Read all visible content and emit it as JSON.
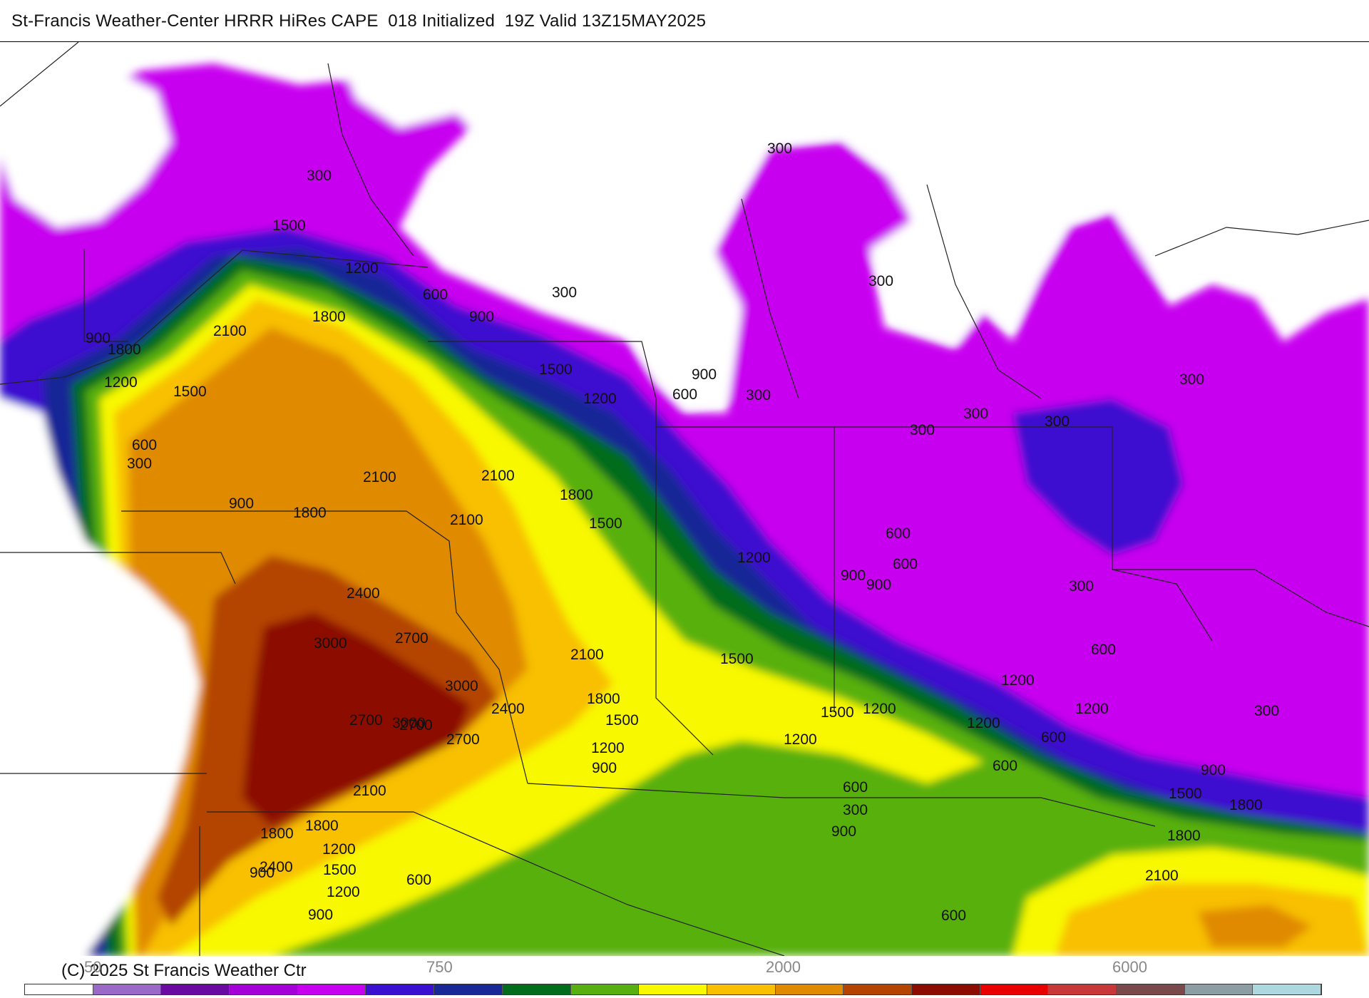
{
  "title": "St-Francis Weather-Center HRRR HiRes CAPE  018 Initialized  19Z Valid 13Z15MAY2025",
  "copyright": "(C) 2025 St Francis Weather Ctr",
  "colors": {
    "c0": "#ffffff",
    "c1": "#9b6ac8",
    "c2": "#6a0aa0",
    "c3": "#a500d8",
    "c4": "#c800f0",
    "c5": "#3c10d0",
    "c6": "#182896",
    "c7": "#006c1c",
    "c8": "#58b010",
    "c9": "#f8f800",
    "c10": "#f8c000",
    "c11": "#e08a00",
    "c12": "#b44400",
    "c13": "#8c0c00",
    "c14": "#e80000",
    "c15": "#c83838",
    "c16": "#7a4a4a",
    "c17": "#8c9ea4",
    "c18": "#aed8e0"
  },
  "colorbar": [
    "#ffffff",
    "#9b6ac8",
    "#6a0aa0",
    "#a500d8",
    "#c800f0",
    "#3c10d0",
    "#182896",
    "#006c1c",
    "#58b010",
    "#f8f800",
    "#f8c000",
    "#e08a00",
    "#b44400",
    "#8c0c00",
    "#e80000",
    "#c83838",
    "#7a4a4a",
    "#8c9ea4",
    "#aed8e0"
  ],
  "colorbar_ticks": [
    "50",
    "750",
    "2000",
    "6000"
  ],
  "contour_labels": [
    "300",
    "1500",
    "1200",
    "600",
    "300",
    "900",
    "2100",
    "1800",
    "900",
    "1800",
    "1200",
    "1500",
    "600",
    "300",
    "900",
    "1800",
    "2100",
    "2100",
    "1500",
    "1200",
    "900",
    "600",
    "300",
    "300",
    "300",
    "300",
    "300",
    "1800",
    "1500",
    "2100",
    "2400",
    "3000",
    "2700",
    "2700",
    "3000",
    "2400",
    "2700",
    "3000",
    "2700",
    "2100",
    "1800",
    "1500",
    "1200",
    "2100",
    "1800",
    "1200",
    "900",
    "600",
    "900",
    "1500",
    "1200",
    "1500",
    "1200",
    "900",
    "600",
    "300",
    "600",
    "1200",
    "900",
    "600",
    "300",
    "300",
    "1200",
    "600",
    "300",
    "1200",
    "600",
    "900",
    "1500",
    "1800",
    "1800",
    "2100",
    "1800",
    "2400",
    "1500",
    "1200",
    "900",
    "600",
    "600",
    "900",
    "1200",
    "300"
  ]
}
